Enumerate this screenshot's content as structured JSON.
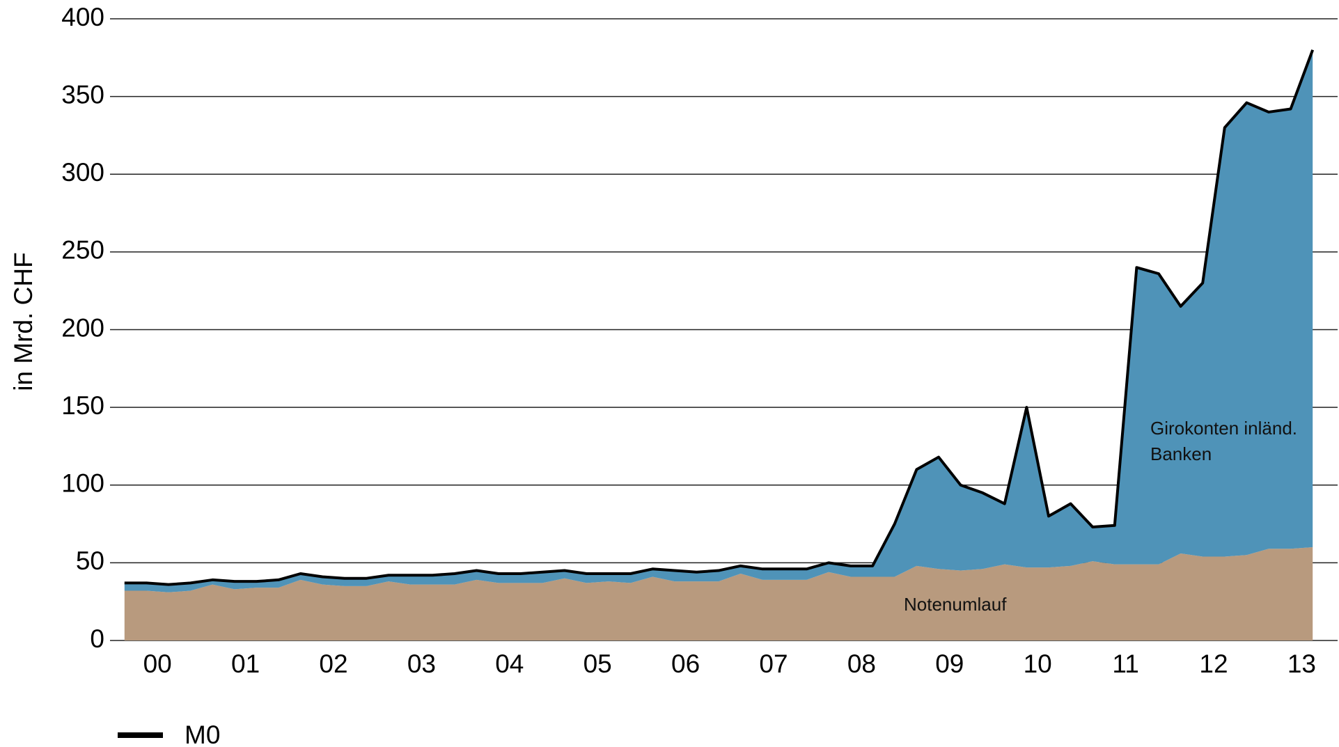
{
  "chart_data": {
    "type": "stacked-area",
    "y_label": "in Mrd. CHF",
    "categories": [
      "00",
      null,
      null,
      null,
      "01",
      null,
      null,
      null,
      "02",
      null,
      null,
      null,
      "03",
      null,
      null,
      null,
      "04",
      null,
      null,
      null,
      "05",
      null,
      null,
      null,
      "06",
      null,
      null,
      null,
      "07",
      null,
      null,
      null,
      "08",
      null,
      null,
      null,
      "09",
      null,
      null,
      null,
      "10",
      null,
      null,
      null,
      "11",
      null,
      null,
      null,
      "12",
      null,
      null,
      null,
      "13",
      null,
      null
    ],
    "series": [
      {
        "name": "Notenumlauf",
        "color": "#b89a7e",
        "values": [
          32,
          32,
          31,
          32,
          36,
          33,
          34,
          34,
          39,
          36,
          35,
          35,
          38,
          36,
          36,
          36,
          39,
          37,
          37,
          37,
          40,
          37,
          38,
          37,
          41,
          38,
          38,
          38,
          43,
          39,
          39,
          39,
          44,
          41,
          41,
          41,
          48,
          46,
          45,
          46,
          49,
          47,
          47,
          48,
          51,
          49,
          49,
          49,
          56,
          54,
          54,
          55,
          59,
          59,
          60
        ]
      },
      {
        "name": "Girokonten inländ. Banken",
        "color": "#4f93b8",
        "values": [
          5,
          5,
          5,
          5,
          3,
          5,
          4,
          5,
          4,
          5,
          5,
          5,
          4,
          6,
          6,
          7,
          6,
          6,
          6,
          7,
          5,
          6,
          5,
          6,
          5,
          7,
          6,
          7,
          5,
          7,
          7,
          7,
          6,
          7,
          7,
          34,
          62,
          72,
          55,
          49,
          39,
          103,
          33,
          40,
          22,
          25,
          191,
          187,
          159,
          176,
          276,
          291,
          281,
          283,
          320
        ]
      },
      {
        "name": "M0",
        "color": "#000000",
        "type": "line",
        "values": [
          37,
          37,
          36,
          37,
          39,
          38,
          38,
          39,
          43,
          41,
          40,
          40,
          42,
          42,
          42,
          43,
          45,
          43,
          43,
          44,
          45,
          43,
          43,
          43,
          46,
          45,
          44,
          45,
          48,
          46,
          46,
          46,
          50,
          48,
          48,
          75,
          110,
          118,
          100,
          95,
          88,
          150,
          80,
          88,
          73,
          74,
          240,
          236,
          215,
          230,
          330,
          346,
          340,
          342,
          380
        ]
      }
    ],
    "ylim": [
      0,
      400
    ],
    "yticks": [
      0,
      50,
      100,
      150,
      200,
      250,
      300,
      350,
      400
    ],
    "grid": true,
    "legend": "bottom-left"
  }
}
